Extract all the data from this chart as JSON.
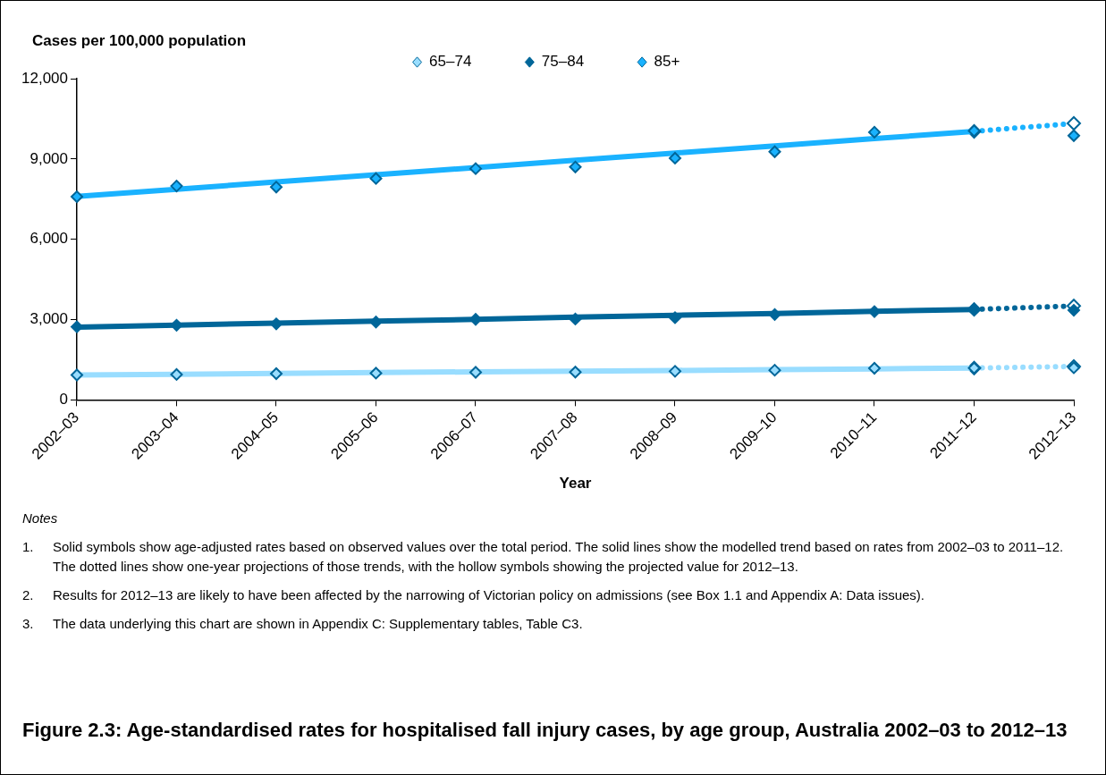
{
  "chart_data": {
    "type": "line",
    "title": "Figure 2.3: Age-standardised rates for hospitalised fall injury cases, by age group, Australia 2002–03 to 2012–13",
    "ylabel": "Cases per 100,000 population",
    "xlabel": "Year",
    "categories": [
      "2002–03",
      "2003–04",
      "2004–05",
      "2005–06",
      "2006–07",
      "2007–08",
      "2008–09",
      "2009–10",
      "2010–11",
      "2011–12",
      "2012–13"
    ],
    "ylim": [
      0,
      12000
    ],
    "yticks": [
      0,
      {
        "value": 3000,
        "label": "3,000"
      },
      {
        "value": 6000,
        "label": "6,000"
      },
      {
        "value": 9000,
        "label": "9,000"
      },
      {
        "value": 12000,
        "label": "12,000"
      }
    ],
    "grid": false,
    "legend": "top",
    "series": [
      {
        "type": "scatter",
        "name": "65–74",
        "color": "#99ddff",
        "marker": "diamond",
        "values": [
          930,
          950,
          980,
          1000,
          1030,
          1040,
          1070,
          1110,
          1180,
          1190,
          1200
        ]
      },
      {
        "type": "scatter",
        "name": "75–84",
        "color": "#006699",
        "marker": "diamond",
        "values": [
          2730,
          2790,
          2840,
          2910,
          3010,
          3020,
          3070,
          3190,
          3300,
          3380,
          3350
        ]
      },
      {
        "type": "scatter",
        "name": "85+",
        "color": "#1ab2ff",
        "marker": "diamond",
        "values": [
          7590,
          7990,
          7950,
          8270,
          8640,
          8700,
          9030,
          9270,
          10000,
          10050,
          9870
        ]
      },
      {
        "type": "line",
        "color": "#99ddff",
        "marker": "none",
        "line_style": "solid",
        "values": [
          930,
          960,
          990,
          1020,
          1050,
          1070,
          1100,
          1130,
          1160,
          1190,
          null
        ]
      },
      {
        "type": "line",
        "color": "#006699",
        "marker": "none",
        "line_style": "solid",
        "values": [
          2720,
          2790,
          2870,
          2940,
          3010,
          3090,
          3160,
          3230,
          3310,
          3380,
          null
        ]
      },
      {
        "type": "line",
        "color": "#1ab2ff",
        "marker": "none",
        "line_style": "solid",
        "values": [
          7600,
          7870,
          8140,
          8410,
          8680,
          8950,
          9220,
          9490,
          9760,
          10030,
          null
        ]
      },
      {
        "type": "line",
        "color": "#99ddff",
        "marker": "diamond",
        "line_style": "dotted",
        "values": [
          null,
          null,
          null,
          null,
          null,
          null,
          null,
          null,
          null,
          1190,
          1250
        ]
      },
      {
        "type": "line",
        "color": "#006699",
        "marker": "diamond",
        "line_style": "dotted",
        "values": [
          null,
          null,
          null,
          null,
          null,
          null,
          null,
          null,
          null,
          3380,
          3510
        ]
      },
      {
        "type": "line",
        "color": "#1ab2ff",
        "marker": "diamond",
        "line_style": "dotted",
        "values": [
          null,
          null,
          null,
          null,
          null,
          null,
          null,
          null,
          null,
          10030,
          10330
        ]
      }
    ],
    "annotations": [
      "Notes",
      "1.\tSolid symbols show age-adjusted rates based on observed values over the total period. The solid lines show the modelled trend based on rates from 2002–03 to 2011–12. The dotted lines show one-year projections of those trends, with the hollow symbols showing the projected value for 2012–13.",
      "2.\tResults for 2012–13 are likely to have been affected by the narrowing of Victorian policy on admissions (see Box 1.1 and Appendix A: Data issues).",
      "3.\tThe data underlying this chart are shown in Appendix C: Supplementary tables, Table C3."
    ]
  }
}
